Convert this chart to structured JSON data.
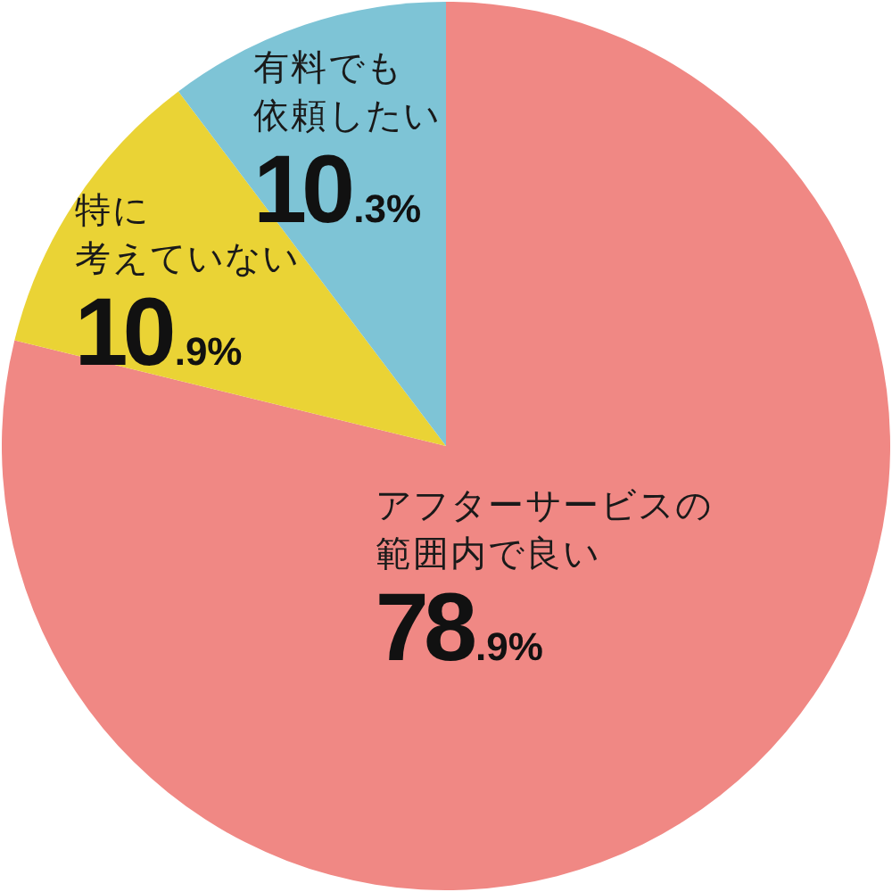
{
  "chart_data": {
    "type": "pie",
    "categories": [
      "アフターサービスの範囲内で良い",
      "特に考えていない",
      "有料でも依頼したい"
    ],
    "values": [
      78.9,
      10.9,
      10.3
    ],
    "colors": [
      "#f08884",
      "#ead335",
      "#7ec4d6"
    ],
    "value_labels": [
      "78.9%",
      "10.9%",
      "10.3%"
    ]
  }
}
